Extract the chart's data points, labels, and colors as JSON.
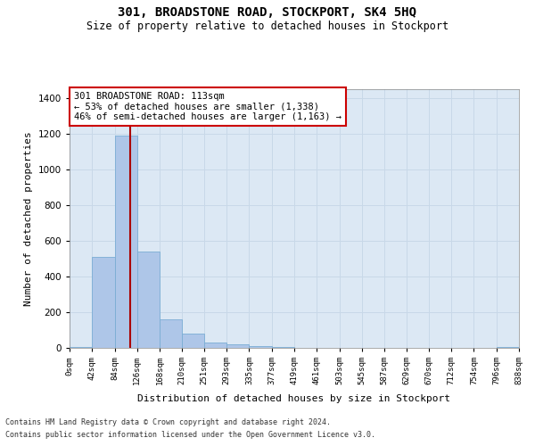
{
  "title": "301, BROADSTONE ROAD, STOCKPORT, SK4 5HQ",
  "subtitle": "Size of property relative to detached houses in Stockport",
  "xlabel": "Distribution of detached houses by size in Stockport",
  "ylabel": "Number of detached properties",
  "bar_color": "#aec6e8",
  "bar_edge_color": "#7aadd4",
  "grid_color": "#c8d8e8",
  "background_color": "#dce8f4",
  "vline_x": 113,
  "vline_color": "#aa0000",
  "annotation_text": "301 BROADSTONE ROAD: 113sqm\n← 53% of detached houses are smaller (1,338)\n46% of semi-detached houses are larger (1,163) →",
  "annotation_box_color": "#ffffff",
  "annotation_box_edge": "#cc0000",
  "footnote1": "Contains HM Land Registry data © Crown copyright and database right 2024.",
  "footnote2": "Contains public sector information licensed under the Open Government Licence v3.0.",
  "bin_edges": [
    0,
    42,
    84,
    126,
    168,
    210,
    251,
    293,
    335,
    377,
    419,
    461,
    503,
    545,
    587,
    629,
    670,
    712,
    754,
    796,
    838
  ],
  "bar_heights": [
    5,
    510,
    1190,
    540,
    160,
    80,
    30,
    20,
    10,
    5,
    2,
    1,
    1,
    0,
    0,
    1,
    0,
    0,
    0,
    5
  ],
  "ylim": [
    0,
    1450
  ],
  "yticks": [
    0,
    200,
    400,
    600,
    800,
    1000,
    1200,
    1400
  ],
  "figsize": [
    6.0,
    5.0
  ],
  "dpi": 100
}
